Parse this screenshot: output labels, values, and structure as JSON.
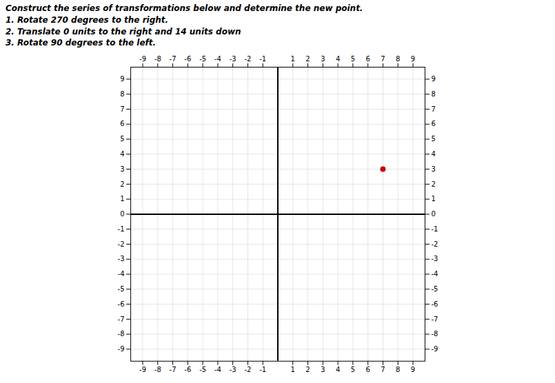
{
  "chart_data": {
    "type": "scatter",
    "title": "Construct the series of transformations below and determine the new point.",
    "annotations": [
      "1. Rotate 270 degrees to the right.",
      "2. Translate 0 units to the right and 14 units down",
      "3. Rotate 90 degrees to the left."
    ],
    "x": [
      7
    ],
    "values": [
      3
    ],
    "color": "#cc0000",
    "xlim": [
      -9.8,
      9.8
    ],
    "ylim": [
      -9.8,
      9.8
    ],
    "xticks": [
      -9,
      -8,
      -7,
      -6,
      -5,
      -4,
      -3,
      -2,
      -1,
      1,
      2,
      3,
      4,
      5,
      6,
      7,
      8,
      9
    ],
    "yticks": [
      -9,
      -8,
      -7,
      -6,
      -5,
      -4,
      -3,
      -2,
      -1,
      0,
      1,
      2,
      3,
      4,
      5,
      6,
      7,
      8,
      9
    ],
    "grid": true
  }
}
